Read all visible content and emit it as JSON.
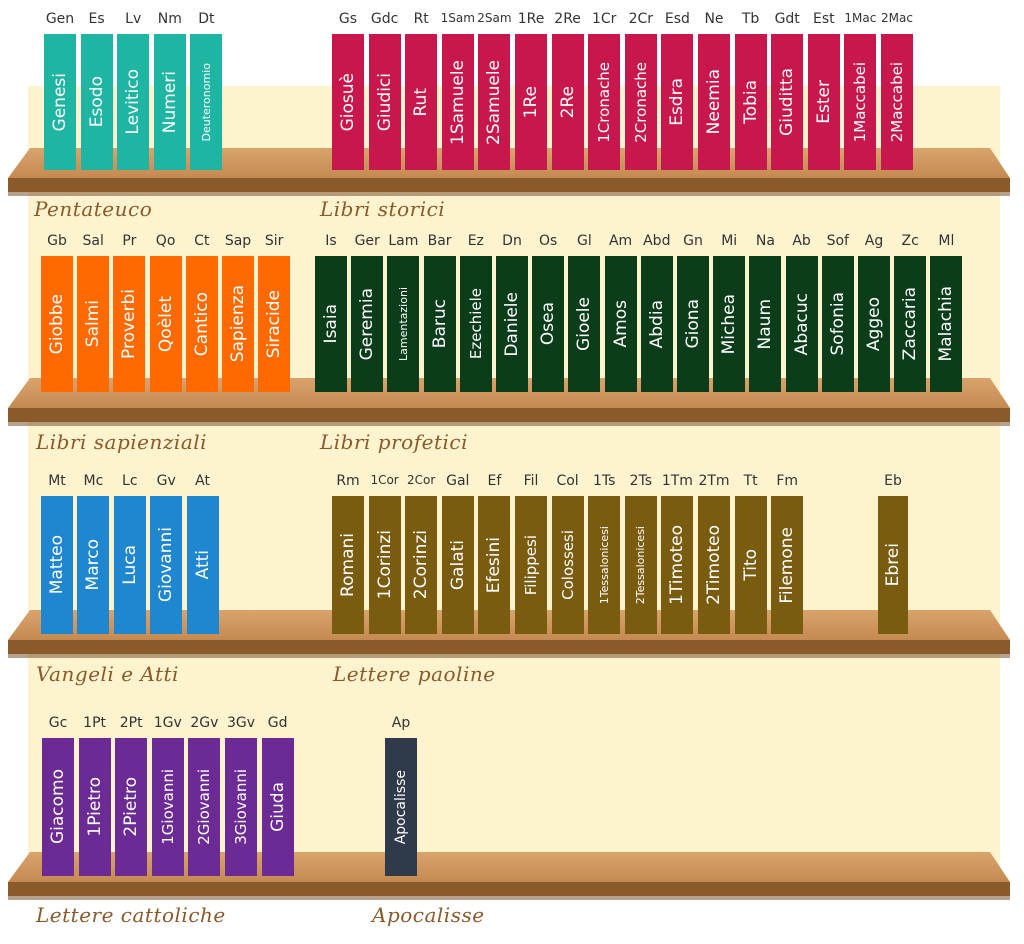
{
  "colors": {
    "wall": "#fdf3cf",
    "shelf": "#c48a52",
    "shelf_edge": "#8a5a2b",
    "label": "#8a5a2b",
    "pentateuco": "#1fb5a3",
    "storici": "#c8174c",
    "sapienziali": "#ff6a00",
    "profetici": "#0b3d1a",
    "vangeli": "#1f86d0",
    "paoline": "#7a5c10",
    "cattoliche": "#6c2a94",
    "apocalisse": "#2f3a4a"
  },
  "sections": [
    {
      "key": "pentateuco",
      "label": "Pentateuco"
    },
    {
      "key": "storici",
      "label": "Libri storici"
    },
    {
      "key": "sapienziali",
      "label": "Libri sapienziali"
    },
    {
      "key": "profetici",
      "label": "Libri profetici"
    },
    {
      "key": "vangeli",
      "label": "Vangeli e Atti"
    },
    {
      "key": "paoline",
      "label": "Lettere paoline"
    },
    {
      "key": "cattoliche",
      "label": "Lettere cattoliche"
    },
    {
      "key": "apocalisse",
      "label": "Apocalisse"
    }
  ],
  "books": [
    {
      "abbr": "Gen",
      "title": "Genesi",
      "section": "pentateuco"
    },
    {
      "abbr": "Es",
      "title": "Esodo",
      "section": "pentateuco"
    },
    {
      "abbr": "Lv",
      "title": "Levitico",
      "section": "pentateuco"
    },
    {
      "abbr": "Nm",
      "title": "Numeri",
      "section": "pentateuco"
    },
    {
      "abbr": "Dt",
      "title": "Deuteronomio",
      "section": "pentateuco"
    },
    {
      "abbr": "Gs",
      "title": "Giosuè",
      "section": "storici"
    },
    {
      "abbr": "Gdc",
      "title": "Giudici",
      "section": "storici"
    },
    {
      "abbr": "Rt",
      "title": "Rut",
      "section": "storici"
    },
    {
      "abbr": "1Sam",
      "title": "1Samuele",
      "section": "storici"
    },
    {
      "abbr": "2Sam",
      "title": "2Samuele",
      "section": "storici"
    },
    {
      "abbr": "1Re",
      "title": "1Re",
      "section": "storici"
    },
    {
      "abbr": "2Re",
      "title": "2Re",
      "section": "storici"
    },
    {
      "abbr": "1Cr",
      "title": "1Cronache",
      "section": "storici"
    },
    {
      "abbr": "2Cr",
      "title": "2Cronache",
      "section": "storici"
    },
    {
      "abbr": "Esd",
      "title": "Esdra",
      "section": "storici"
    },
    {
      "abbr": "Ne",
      "title": "Neemia",
      "section": "storici"
    },
    {
      "abbr": "Tb",
      "title": "Tobia",
      "section": "storici"
    },
    {
      "abbr": "Gdt",
      "title": "Giuditta",
      "section": "storici"
    },
    {
      "abbr": "Est",
      "title": "Ester",
      "section": "storici"
    },
    {
      "abbr": "1Mac",
      "title": "1Maccabei",
      "section": "storici"
    },
    {
      "abbr": "2Mac",
      "title": "2Maccabei",
      "section": "storici"
    },
    {
      "abbr": "Gb",
      "title": "Giobbe",
      "section": "sapienziali"
    },
    {
      "abbr": "Sal",
      "title": "Salmi",
      "section": "sapienziali"
    },
    {
      "abbr": "Pr",
      "title": "Proverbi",
      "section": "sapienziali"
    },
    {
      "abbr": "Qo",
      "title": "Qoèlet",
      "section": "sapienziali"
    },
    {
      "abbr": "Ct",
      "title": "Cantico",
      "section": "sapienziali"
    },
    {
      "abbr": "Sap",
      "title": "Sapienza",
      "section": "sapienziali"
    },
    {
      "abbr": "Sir",
      "title": "Siracide",
      "section": "sapienziali"
    },
    {
      "abbr": "Is",
      "title": "Isaia",
      "section": "profetici"
    },
    {
      "abbr": "Ger",
      "title": "Geremia",
      "section": "profetici"
    },
    {
      "abbr": "Lam",
      "title": "Lamentazioni",
      "section": "profetici"
    },
    {
      "abbr": "Bar",
      "title": "Baruc",
      "section": "profetici"
    },
    {
      "abbr": "Ez",
      "title": "Ezechiele",
      "section": "profetici"
    },
    {
      "abbr": "Dn",
      "title": "Daniele",
      "section": "profetici"
    },
    {
      "abbr": "Os",
      "title": "Osea",
      "section": "profetici"
    },
    {
      "abbr": "Gl",
      "title": "Gioele",
      "section": "profetici"
    },
    {
      "abbr": "Am",
      "title": "Amos",
      "section": "profetici"
    },
    {
      "abbr": "Abd",
      "title": "Abdia",
      "section": "profetici"
    },
    {
      "abbr": "Gn",
      "title": "Giona",
      "section": "profetici"
    },
    {
      "abbr": "Mi",
      "title": "Michea",
      "section": "profetici"
    },
    {
      "abbr": "Na",
      "title": "Naum",
      "section": "profetici"
    },
    {
      "abbr": "Ab",
      "title": "Abacuc",
      "section": "profetici"
    },
    {
      "abbr": "Sof",
      "title": "Sofonia",
      "section": "profetici"
    },
    {
      "abbr": "Ag",
      "title": "Aggeo",
      "section": "profetici"
    },
    {
      "abbr": "Zc",
      "title": "Zaccaria",
      "section": "profetici"
    },
    {
      "abbr": "Ml",
      "title": "Malachia",
      "section": "profetici"
    },
    {
      "abbr": "Mt",
      "title": "Matteo",
      "section": "vangeli"
    },
    {
      "abbr": "Mc",
      "title": "Marco",
      "section": "vangeli"
    },
    {
      "abbr": "Lc",
      "title": "Luca",
      "section": "vangeli"
    },
    {
      "abbr": "Gv",
      "title": "Giovanni",
      "section": "vangeli"
    },
    {
      "abbr": "At",
      "title": "Atti",
      "section": "vangeli"
    },
    {
      "abbr": "Rm",
      "title": "Romani",
      "section": "paoline"
    },
    {
      "abbr": "1Cor",
      "title": "1Corinzi",
      "section": "paoline"
    },
    {
      "abbr": "2Cor",
      "title": "2Corinzi",
      "section": "paoline"
    },
    {
      "abbr": "Gal",
      "title": "Galati",
      "section": "paoline"
    },
    {
      "abbr": "Ef",
      "title": "Efesini",
      "section": "paoline"
    },
    {
      "abbr": "Fil",
      "title": "Filippesi",
      "section": "paoline"
    },
    {
      "abbr": "Col",
      "title": "Colossesi",
      "section": "paoline"
    },
    {
      "abbr": "1Ts",
      "title": "1Tessalonicesi",
      "section": "paoline"
    },
    {
      "abbr": "2Ts",
      "title": "2Tessalonicesi",
      "section": "paoline"
    },
    {
      "abbr": "1Tm",
      "title": "1Timoteo",
      "section": "paoline"
    },
    {
      "abbr": "2Tm",
      "title": "2Timoteo",
      "section": "paoline"
    },
    {
      "abbr": "Tt",
      "title": "Tito",
      "section": "paoline"
    },
    {
      "abbr": "Fm",
      "title": "Filemone",
      "section": "paoline"
    },
    {
      "abbr": "Eb",
      "title": "Ebrei",
      "section": "paoline"
    },
    {
      "abbr": "Gc",
      "title": "Giacomo",
      "section": "cattoliche"
    },
    {
      "abbr": "1Pt",
      "title": "1Pietro",
      "section": "cattoliche"
    },
    {
      "abbr": "2Pt",
      "title": "2Pietro",
      "section": "cattoliche"
    },
    {
      "abbr": "1Gv",
      "title": "1Giovanni",
      "section": "cattoliche"
    },
    {
      "abbr": "2Gv",
      "title": "2Giovanni",
      "section": "cattoliche"
    },
    {
      "abbr": "3Gv",
      "title": "3Giovanni",
      "section": "cattoliche"
    },
    {
      "abbr": "Gd",
      "title": "Giuda",
      "section": "cattoliche"
    },
    {
      "abbr": "Ap",
      "title": "Apocalisse",
      "section": "apocalisse"
    }
  ]
}
